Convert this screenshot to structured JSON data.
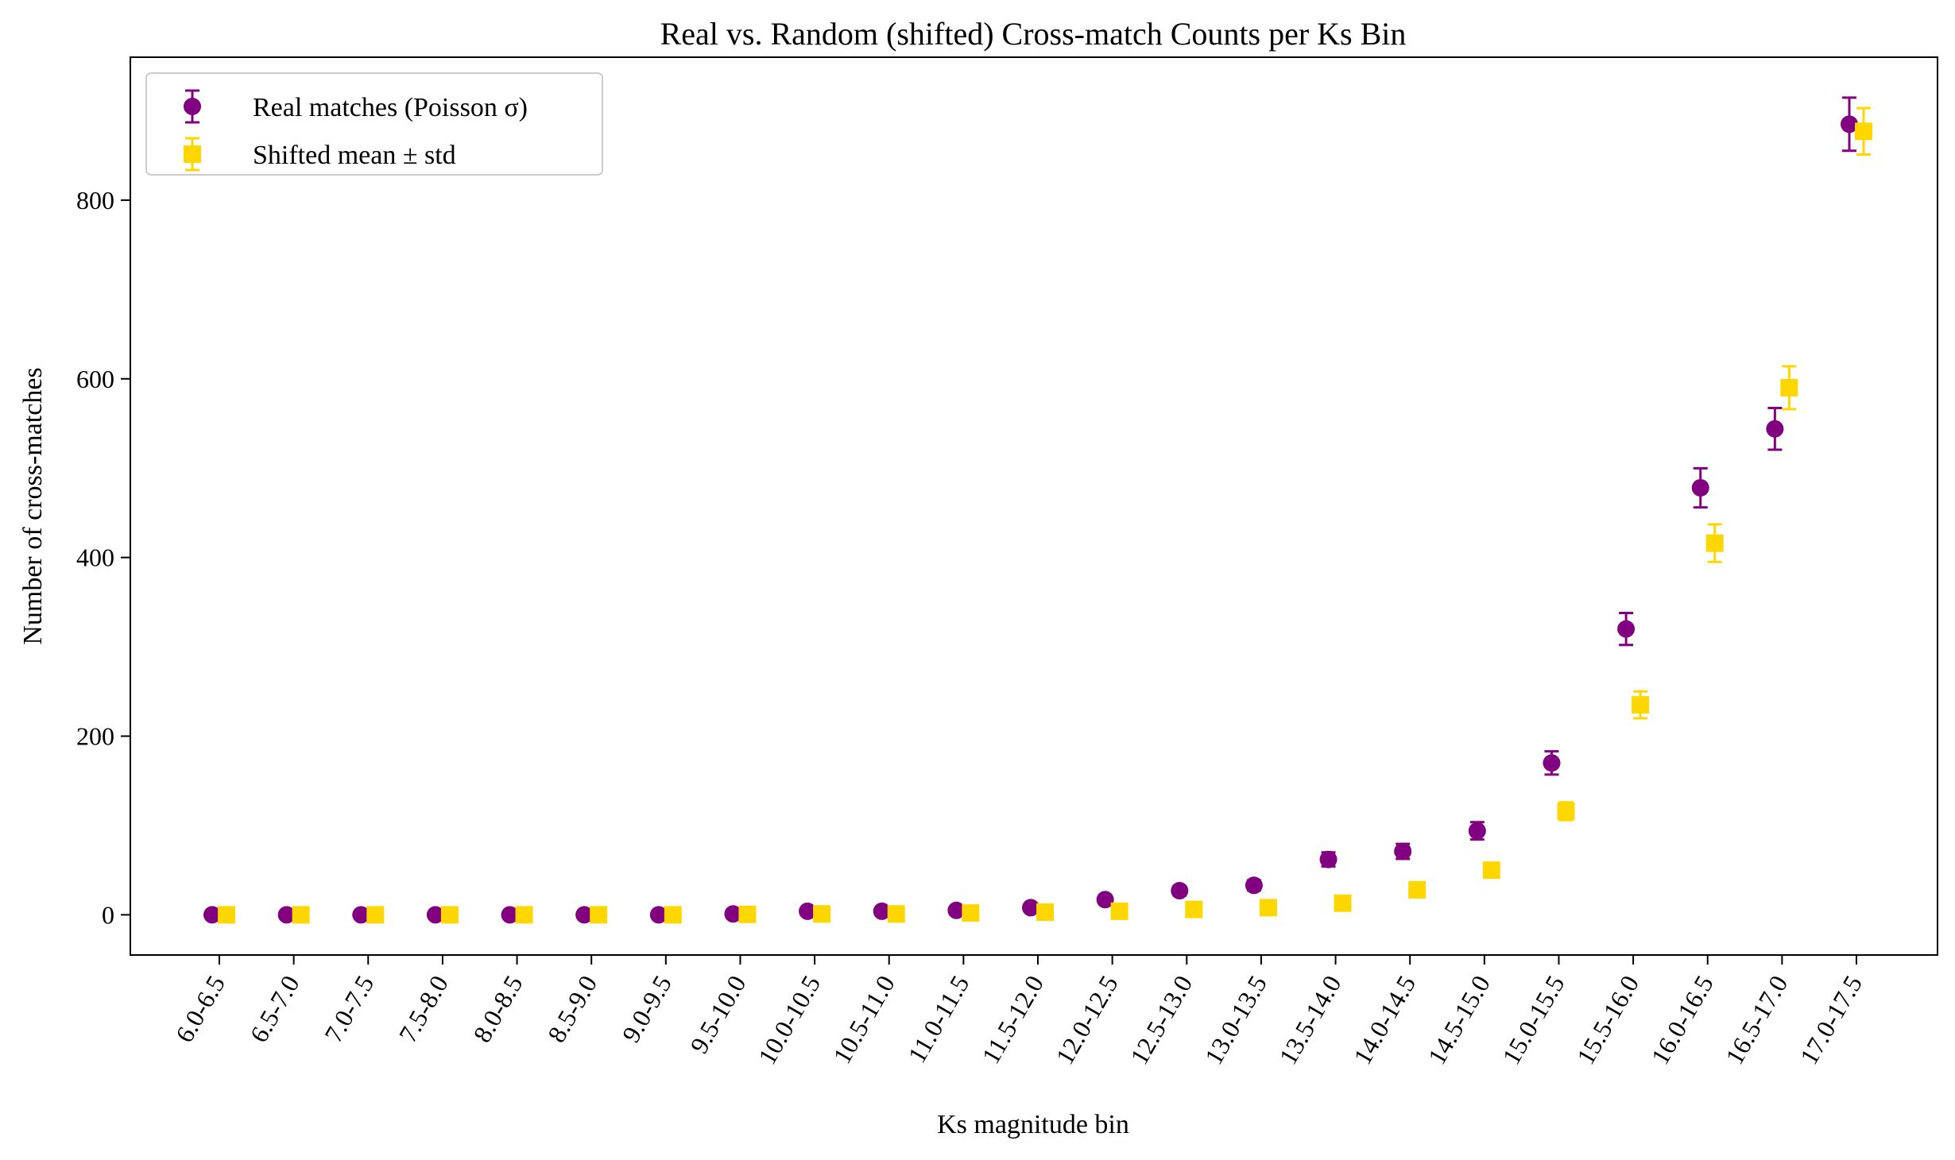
{
  "chart_data": {
    "type": "scatter",
    "title": "Real vs. Random (shifted) Cross-match Counts per Ks Bin",
    "xlabel": "Ks magnitude bin",
    "ylabel": "Number of cross-matches",
    "categories": [
      "6.0-6.5",
      "6.5-7.0",
      "7.0-7.5",
      "7.5-8.0",
      "8.0-8.5",
      "8.5-9.0",
      "9.0-9.5",
      "9.5-10.0",
      "10.0-10.5",
      "10.5-11.0",
      "11.0-11.5",
      "11.5-12.0",
      "12.0-12.5",
      "12.5-13.0",
      "13.0-13.5",
      "13.5-14.0",
      "14.0-14.5",
      "14.5-15.0",
      "15.0-15.5",
      "15.5-16.0",
      "16.0-16.5",
      "16.5-17.0",
      "17.0-17.5"
    ],
    "ylim": [
      -45,
      960
    ],
    "yticks": [
      0,
      200,
      400,
      600,
      800
    ],
    "grid": false,
    "legend_position": "upper-left",
    "series": [
      {
        "name": "Real matches (Poisson σ)",
        "marker": "circle",
        "color": "#800080",
        "values": [
          0,
          0,
          0,
          0,
          0,
          0,
          0,
          1,
          4,
          4,
          5,
          8,
          17,
          27,
          33,
          62,
          71,
          94,
          170,
          320,
          478,
          544,
          885
        ],
        "errors": [
          0,
          0,
          0,
          0,
          0,
          0,
          0,
          1,
          2,
          2,
          2.2,
          2.8,
          4.1,
          5.2,
          5.7,
          7.9,
          8.4,
          9.7,
          13,
          17.9,
          21.9,
          23.3,
          29.7
        ]
      },
      {
        "name": "Shifted mean ± std",
        "marker": "square",
        "color": "#FFD700",
        "values": [
          0,
          0,
          0,
          0,
          0,
          0,
          0,
          0.5,
          1,
          1,
          2,
          3,
          4,
          6,
          8,
          13,
          28,
          50,
          116,
          235,
          416,
          590,
          877
        ],
        "errors": [
          0,
          0,
          0,
          0,
          0,
          0,
          0,
          0.5,
          1,
          1,
          1.3,
          1.7,
          2,
          2.5,
          3,
          3.5,
          5,
          7,
          10,
          15,
          21,
          24,
          26
        ]
      }
    ]
  }
}
